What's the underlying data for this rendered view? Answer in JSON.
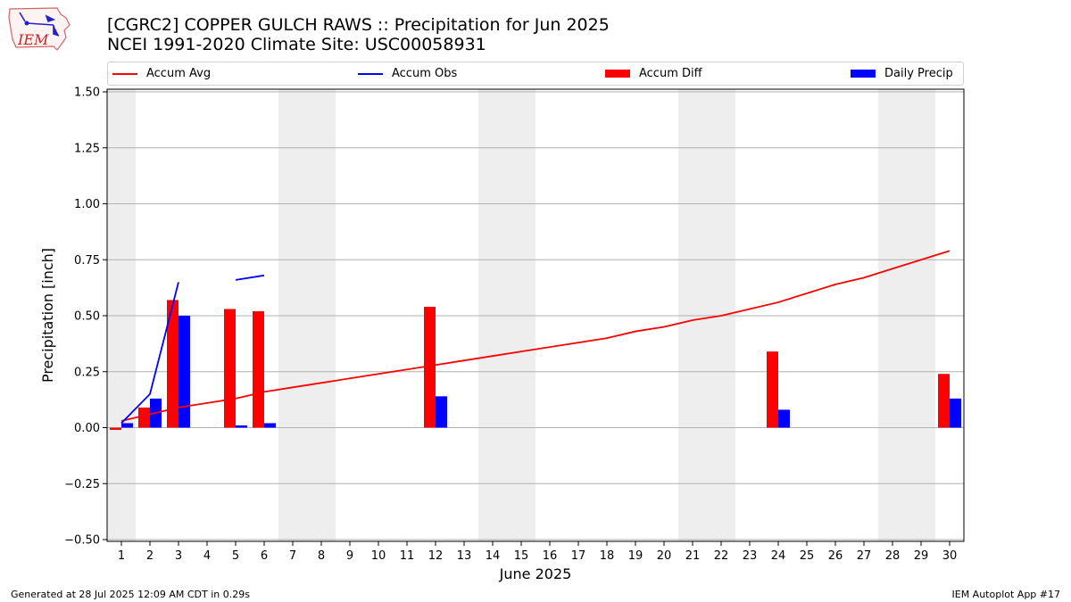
{
  "header": {
    "title_line1": "[CGRC2] COPPER GULCH RAWS :: Precipitation for Jun 2025",
    "title_line2": "NCEI 1991-2020 Climate Site: USC00058931"
  },
  "logo": {
    "text": "IEM"
  },
  "footer": {
    "generated": "Generated at 28 Jul 2025 12:09 AM CDT in 0.29s",
    "app": "IEM Autoplot App #17"
  },
  "colors": {
    "accum_avg": "#ff0000",
    "accum_obs": "#0000ff",
    "accum_diff": "#ff0000",
    "daily_precip": "#0000ff",
    "weekend_shade": "#eeeeee",
    "grid": "#b0b0b0"
  },
  "chart_data": {
    "type": "bar",
    "xlabel": "June 2025",
    "ylabel": "Precipitation [inch]",
    "ylim": [
      -0.5,
      1.5
    ],
    "yticks": [
      -0.5,
      -0.25,
      0.0,
      0.25,
      0.5,
      0.75,
      1.0,
      1.25,
      1.5
    ],
    "ytick_labels": [
      "−0.50",
      "−0.25",
      "0.00",
      "0.25",
      "0.50",
      "0.75",
      "1.00",
      "1.25",
      "1.50"
    ],
    "x": [
      1,
      2,
      3,
      4,
      5,
      6,
      7,
      8,
      9,
      10,
      11,
      12,
      13,
      14,
      15,
      16,
      17,
      18,
      19,
      20,
      21,
      22,
      23,
      24,
      25,
      26,
      27,
      28,
      29,
      30
    ],
    "weekend_days": [
      1,
      7,
      8,
      14,
      15,
      21,
      22,
      28,
      29
    ],
    "grid": "horizontal",
    "legend": {
      "placement": "top",
      "entries": [
        "Accum Avg",
        "Accum Obs",
        "Accum Diff",
        "Daily Precip"
      ]
    },
    "series": [
      {
        "name": "Accum Avg",
        "kind": "line",
        "values": [
          0.03,
          0.06,
          0.09,
          0.11,
          0.13,
          0.16,
          0.18,
          0.2,
          0.22,
          0.24,
          0.26,
          0.28,
          0.3,
          0.32,
          0.34,
          0.36,
          0.38,
          0.4,
          0.43,
          0.45,
          0.48,
          0.5,
          0.53,
          0.56,
          0.6,
          0.64,
          0.67,
          0.71,
          0.75,
          0.79
        ]
      },
      {
        "name": "Accum Obs",
        "kind": "line",
        "values": [
          0.02,
          0.15,
          0.65,
          null,
          0.66,
          0.68,
          null,
          null,
          null,
          null,
          null,
          null,
          null,
          null,
          null,
          null,
          null,
          null,
          null,
          null,
          null,
          null,
          null,
          null,
          null,
          null,
          null,
          null,
          null,
          null
        ]
      },
      {
        "name": "Accum Diff",
        "kind": "bar",
        "values": [
          -0.01,
          0.09,
          0.57,
          null,
          0.53,
          0.52,
          null,
          null,
          null,
          null,
          null,
          0.54,
          null,
          null,
          null,
          null,
          null,
          null,
          null,
          null,
          null,
          null,
          null,
          0.34,
          null,
          null,
          null,
          null,
          null,
          0.24
        ]
      },
      {
        "name": "Daily Precip",
        "kind": "bar",
        "values": [
          0.02,
          0.13,
          0.5,
          null,
          0.01,
          0.02,
          null,
          null,
          null,
          null,
          null,
          0.14,
          null,
          null,
          null,
          null,
          null,
          null,
          null,
          null,
          null,
          null,
          null,
          0.08,
          null,
          null,
          null,
          null,
          null,
          0.13
        ]
      }
    ]
  }
}
